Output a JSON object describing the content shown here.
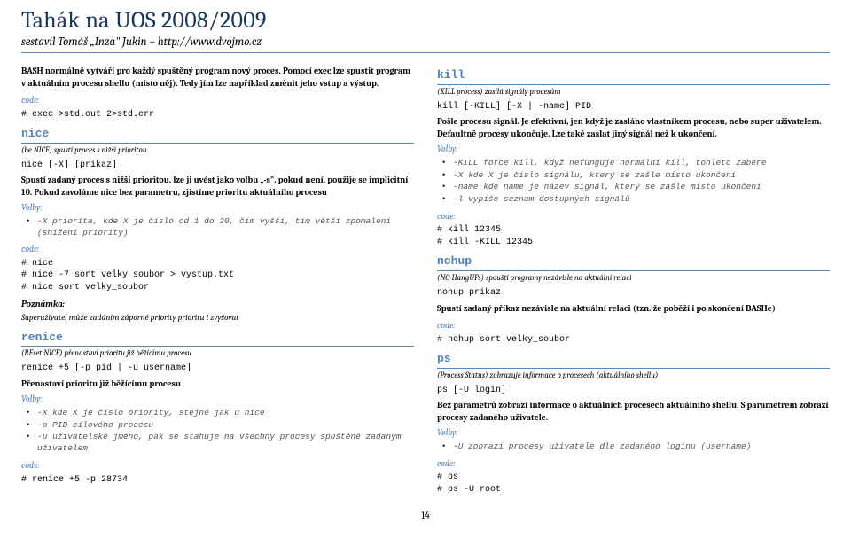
{
  "header": {
    "title": "Tahák na UOS 2008/2009",
    "subtitle": "sestavil Tomáš „Inza\" Jukin – http://www.dvojmo.cz"
  },
  "left": {
    "intro": "BASH normálně vytváří pro každý spuštěný program nový proces. Pomocí exec lze spustit program v aktuálním procesu shellu (místo něj). Tedy jím lze například změnit jeho vstup a výstup.",
    "code1_label": "code:",
    "code1": "# exec >std.out 2>std.err",
    "nice": {
      "head": "nice",
      "desc": "(be NICE) spustí proces s nižší prioritou",
      "syntax": "nice [-X] [prikaz]",
      "p1": "Spustí zadaný proces s nižší prioritou, lze ji uvést jako volbu „-s\", pokud není, použije se implicitní 10. Pokud zavoláme nice bez parametru, zjistíme prioritu aktuálního procesu",
      "volby": "Volby:",
      "opt1": "-X priorita, kde X je číslo od 1 do 20, čím vyšší, tím větší zpomalení (snížení priority)",
      "code_label": "code:",
      "code": "# nice\n# nice -7 sort velky_soubor > vystup.txt\n# nice sort velky_soubor",
      "pozn_label": "Poznámka:",
      "pozn": "Superuživatel může zadáním záporné priority prioritu i zvyšovat"
    },
    "renice": {
      "head": "renice",
      "desc": "(REset NICE) přenastaví prioritu již běžícímu procesu",
      "syntax": "renice +5 [-p pid | -u username]",
      "p1": "Přenastaví prioritu již běžícímu procesu",
      "volby": "Volby:",
      "opt1": "-X kde X je číslo priority, stejné jak u nice",
      "opt2": "-p PID cílového procesu",
      "opt3": "-u uživatelské jméno, pak se stahuje na všechny procesy spuštěné zadaným uživatelem",
      "code_label": "code:",
      "code": "# renice +5 -p 28734"
    }
  },
  "right": {
    "kill": {
      "head": "kill",
      "desc": "(KILL process) zasílá signály procesům",
      "syntax": "kill [-KILL] [-X | -name] PID",
      "p1": "Pošle procesu signál. Je efektivní, jen když je zasláno vlastníkem procesu, nebo super uživatelem. Defaultně procesy ukončuje. Lze také zaslat jiný signál než k ukončení.",
      "volby": "Volby:",
      "opt1": "-KILL   force kill, když nefunguje normální kill, tohleto zabere",
      "opt2": "-X      kde X je číslo signálu, který se zašle místo ukončení",
      "opt3": "-name   kde name je název signál, který se zašle místo ukončení",
      "opt4": "-l      vypíše seznam dostupných signálů",
      "code_label": "code:",
      "code": "# kill 12345\n# kill -KILL 12345"
    },
    "nohup": {
      "head": "nohup",
      "desc": "(NO HangUPs) spouští programy nezávisle na aktuální relaci",
      "syntax": "nohup prikaz",
      "p1": "Spustí zadaný příkaz nezávisle na aktuální relaci (tzn. že poběží i po skončení BASHe)",
      "code_label": "code:",
      "code": "# nohup sort velky_soubor"
    },
    "ps": {
      "head": "ps",
      "desc": "(Process Status) zobrazuje informace o procesech (aktuálního shellu)",
      "syntax": "ps [-U login]",
      "p1": "Bez parametrů zobrazí informace o aktuálních procesech aktuálního shellu. S parametrem zobrazí procesy zadaného uživatele.",
      "volby": "Volby:",
      "opt1": "-U zobrazí procesy uživatele dle zadaného loginu (username)",
      "code_label": "code:",
      "code": "# ps\n# ps -U root"
    }
  },
  "pagenum": "14"
}
